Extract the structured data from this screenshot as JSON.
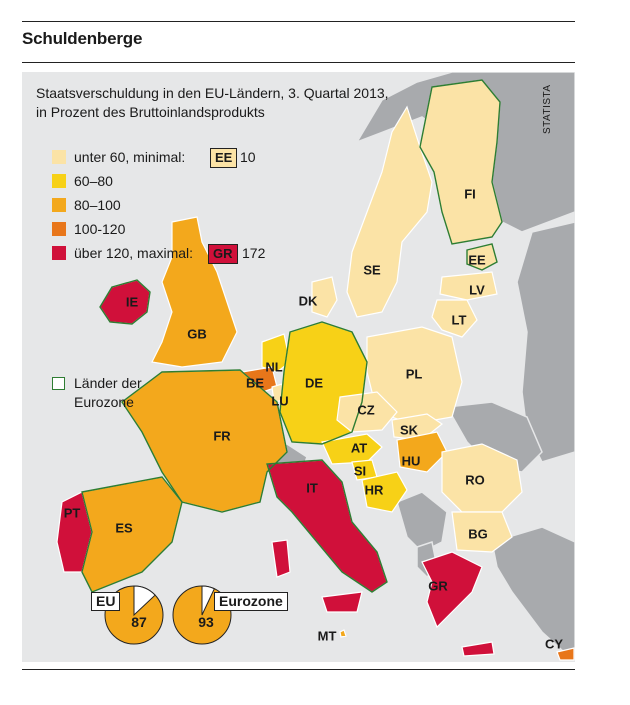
{
  "headline": "Schuldenberge",
  "subtitle": {
    "line1": "Staatsverschuldung in den EU-Ländern, 3. Quartal 2013,",
    "line2": "in Prozent des Bruttoinlandsprodukts"
  },
  "source": "STATISTA",
  "legend": [
    {
      "label": "unter 60, minimal:",
      "color": "#fbe3a6",
      "badge": "EE",
      "badge_value": "10"
    },
    {
      "label": "60–80",
      "color": "#f7d117"
    },
    {
      "label": "80–100",
      "color": "#f3a81c"
    },
    {
      "label": "100-120",
      "color": "#e8761a"
    },
    {
      "label": "über 120, maximal:",
      "color": "#d0103a",
      "badge": "GR",
      "badge_value": "172"
    }
  ],
  "eurozone_key": {
    "line1": "Länder der",
    "line2": "Eurozone",
    "border_color": "#2e7d32"
  },
  "countries": [
    {
      "code": "FI"
    },
    {
      "code": "SE"
    },
    {
      "code": "EE"
    },
    {
      "code": "LV"
    },
    {
      "code": "LT"
    },
    {
      "code": "DK"
    },
    {
      "code": "IE"
    },
    {
      "code": "GB"
    },
    {
      "code": "NL"
    },
    {
      "code": "BE"
    },
    {
      "code": "LU"
    },
    {
      "code": "DE"
    },
    {
      "code": "PL"
    },
    {
      "code": "CZ"
    },
    {
      "code": "SK"
    },
    {
      "code": "FR"
    },
    {
      "code": "AT"
    },
    {
      "code": "HU"
    },
    {
      "code": "SI"
    },
    {
      "code": "HR"
    },
    {
      "code": "RO"
    },
    {
      "code": "IT"
    },
    {
      "code": "PT"
    },
    {
      "code": "ES"
    },
    {
      "code": "BG"
    },
    {
      "code": "GR"
    },
    {
      "code": "MT"
    },
    {
      "code": "CY"
    }
  ],
  "pies": [
    {
      "label": "EU",
      "value": 87,
      "value_text": "87"
    },
    {
      "label": "Eurozone",
      "value": 93,
      "value_text": "93"
    }
  ],
  "colors": {
    "sea": "#e6e7e8",
    "non_eu_land": "#a8aaad",
    "bucket_under60": "#fbe3a6",
    "bucket_60_80": "#f7d117",
    "bucket_80_100": "#f3a81c",
    "bucket_100_120": "#e8761a",
    "bucket_over120": "#d0103a",
    "eurozone_border": "#2e7d32"
  }
}
